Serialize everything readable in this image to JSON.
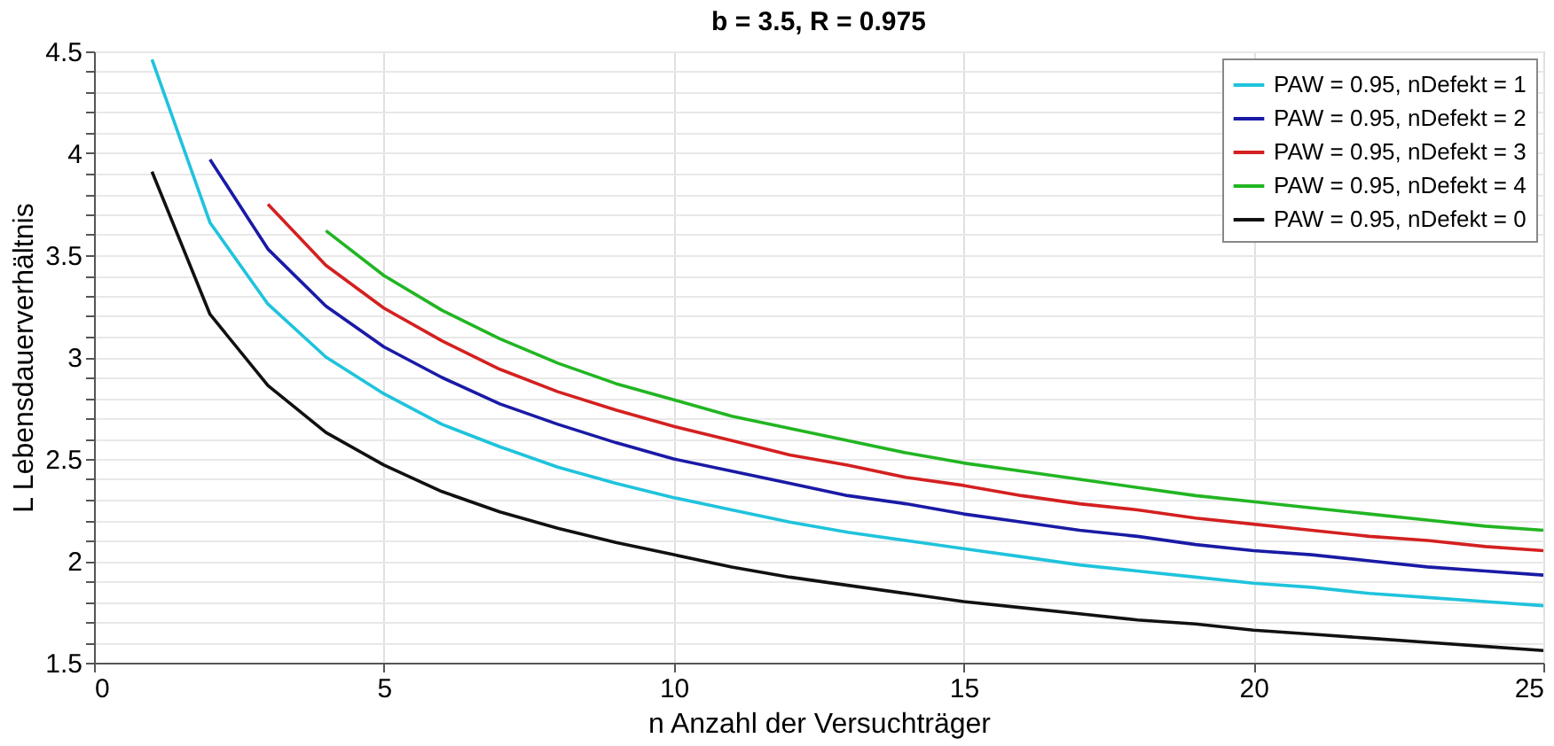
{
  "chart_data": {
    "type": "line",
    "title": "b = 3.5, R = 0.975",
    "xlabel": "n  Anzahl der Versuchträger",
    "ylabel": "L  Lebensdauerverhältnis",
    "xlim": [
      0,
      25
    ],
    "xticks": [
      0,
      5,
      10,
      15,
      20,
      25
    ],
    "ylim": [
      1.5,
      4.5
    ],
    "yticks": [
      1.5,
      {
        "value": 1.6,
        "label": null
      },
      {
        "value": 1.7,
        "label": null
      },
      {
        "value": 1.8,
        "label": null
      },
      {
        "value": 1.9,
        "label": null
      },
      2,
      {
        "value": 2.1,
        "label": null
      },
      {
        "value": 2.2,
        "label": null
      },
      {
        "value": 2.3,
        "label": null
      },
      {
        "value": 2.4,
        "label": null
      },
      2.5,
      {
        "value": 2.6,
        "label": null
      },
      {
        "value": 2.7,
        "label": null
      },
      {
        "value": 2.8,
        "label": null
      },
      {
        "value": 2.9,
        "label": null
      },
      3,
      {
        "value": 3.1,
        "label": null
      },
      {
        "value": 3.2,
        "label": null
      },
      {
        "value": 3.3,
        "label": null
      },
      {
        "value": 3.4,
        "label": null
      },
      3.5,
      {
        "value": 3.6,
        "label": null
      },
      {
        "value": 3.7,
        "label": null
      },
      {
        "value": 3.8,
        "label": null
      },
      {
        "value": 3.9,
        "label": null
      },
      4,
      {
        "value": 4.1,
        "label": null
      },
      {
        "value": 4.2,
        "label": null
      },
      {
        "value": 4.3,
        "label": null
      },
      {
        "value": 4.4,
        "label": null
      },
      4.5
    ],
    "grid": true,
    "legend": "top right",
    "line_style": "solid",
    "series": [
      {
        "name": "PAW = 0.95, nDefekt = 1",
        "color": "#1fc3dc",
        "x": [
          1,
          2,
          3,
          4,
          5,
          6,
          7,
          8,
          9,
          10,
          11,
          12,
          13,
          14,
          15,
          16,
          17,
          18,
          19,
          20,
          21,
          22,
          23,
          24,
          25
        ],
        "values": [
          4.46,
          3.66,
          3.26,
          3.0,
          2.82,
          2.67,
          2.56,
          2.46,
          2.38,
          2.31,
          2.25,
          2.19,
          2.14,
          2.1,
          2.06,
          2.02,
          1.98,
          1.95,
          1.92,
          1.89,
          1.87,
          1.84,
          1.82,
          1.8,
          1.78
        ]
      },
      {
        "name": "PAW = 0.95, nDefekt = 2",
        "color": "#1a1aa6",
        "x": [
          2,
          3,
          4,
          5,
          6,
          7,
          8,
          9,
          10,
          11,
          12,
          13,
          14,
          15,
          16,
          17,
          18,
          19,
          20,
          21,
          22,
          23,
          24,
          25
        ],
        "values": [
          3.97,
          3.53,
          3.25,
          3.05,
          2.9,
          2.77,
          2.67,
          2.58,
          2.5,
          2.44,
          2.38,
          2.32,
          2.28,
          2.23,
          2.19,
          2.15,
          2.12,
          2.08,
          2.05,
          2.03,
          2.0,
          1.97,
          1.95,
          1.93
        ]
      },
      {
        "name": "PAW = 0.95, nDefekt = 3",
        "color": "#d42020",
        "x": [
          3,
          4,
          5,
          6,
          7,
          8,
          9,
          10,
          11,
          12,
          13,
          14,
          15,
          16,
          17,
          18,
          19,
          20,
          21,
          22,
          23,
          24,
          25
        ],
        "values": [
          3.75,
          3.45,
          3.24,
          3.08,
          2.94,
          2.83,
          2.74,
          2.66,
          2.59,
          2.52,
          2.47,
          2.41,
          2.37,
          2.32,
          2.28,
          2.25,
          2.21,
          2.18,
          2.15,
          2.12,
          2.1,
          2.07,
          2.05
        ]
      },
      {
        "name": "PAW = 0.95, nDefekt = 4",
        "color": "#22b522",
        "x": [
          4,
          5,
          6,
          7,
          8,
          9,
          10,
          11,
          12,
          13,
          14,
          15,
          16,
          17,
          18,
          19,
          20,
          21,
          22,
          23,
          24,
          25
        ],
        "values": [
          3.62,
          3.4,
          3.23,
          3.09,
          2.97,
          2.87,
          2.79,
          2.71,
          2.65,
          2.59,
          2.53,
          2.48,
          2.44,
          2.4,
          2.36,
          2.32,
          2.29,
          2.26,
          2.23,
          2.2,
          2.17,
          2.15
        ]
      },
      {
        "name": "PAW = 0.95, nDefekt = 0",
        "color": "#111111",
        "x": [
          1,
          2,
          3,
          4,
          5,
          6,
          7,
          8,
          9,
          10,
          11,
          12,
          13,
          14,
          15,
          16,
          17,
          18,
          19,
          20,
          21,
          22,
          23,
          24,
          25
        ],
        "values": [
          3.91,
          3.21,
          2.86,
          2.63,
          2.47,
          2.34,
          2.24,
          2.16,
          2.09,
          2.03,
          1.97,
          1.92,
          1.88,
          1.84,
          1.8,
          1.77,
          1.74,
          1.71,
          1.69,
          1.66,
          1.64,
          1.62,
          1.6,
          1.58,
          1.56
        ]
      }
    ]
  }
}
